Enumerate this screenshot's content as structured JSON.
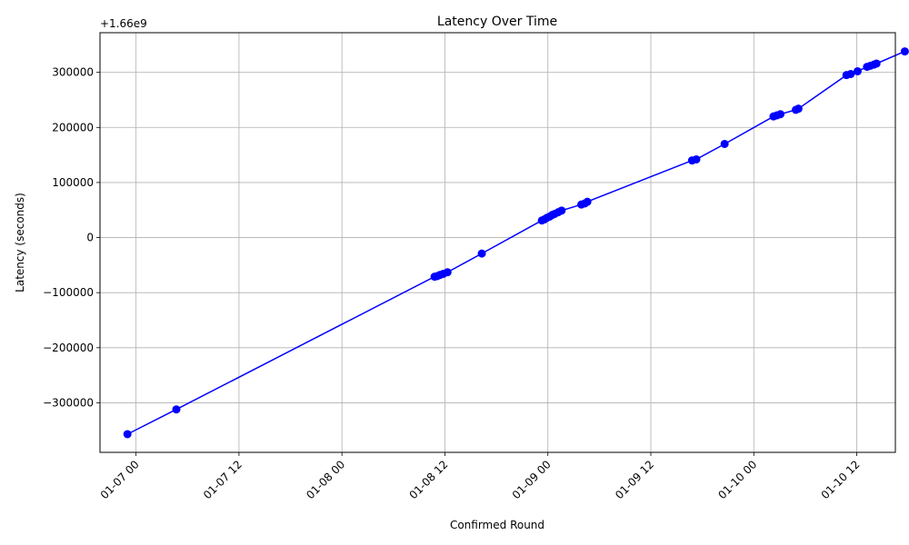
{
  "chart_data": {
    "type": "line",
    "title": "Latency Over Time",
    "xlabel": "Confirmed Round",
    "ylabel": "Latency (seconds)",
    "y_offset_text": "+1.66e9",
    "grid": true,
    "color": "#0000ff",
    "marker": "circle",
    "x_unit": "hours since 01-07 00:00",
    "xlim": [
      -4.2,
      88.5
    ],
    "ylim": [
      -390000,
      372000
    ],
    "x_ticks": [
      0,
      12,
      24,
      36,
      48,
      60,
      72,
      84
    ],
    "x_tick_labels": [
      "01-07 00",
      "01-07 12",
      "01-08 00",
      "01-08 12",
      "01-09 00",
      "01-09 12",
      "01-10 00",
      "01-10 12"
    ],
    "y_ticks": [
      -300000,
      -200000,
      -100000,
      0,
      100000,
      200000,
      300000
    ],
    "y_tick_labels": [
      "−300000",
      "−200000",
      "−100000",
      "0",
      "100000",
      "200000",
      "300000"
    ],
    "series": [
      {
        "name": "Latency",
        "x": [
          -1.0,
          4.7,
          34.8,
          35.1,
          35.4,
          35.8,
          36.3,
          40.3,
          47.3,
          47.6,
          47.9,
          48.2,
          48.5,
          48.8,
          49.2,
          49.6,
          51.9,
          52.3,
          52.6,
          64.8,
          65.3,
          68.6,
          74.3,
          74.7,
          75.1,
          76.9,
          77.2,
          82.8,
          83.3,
          84.1,
          85.2,
          85.6,
          86.0,
          86.3,
          89.6
        ],
        "y": [
          -357000,
          -312000,
          -71000,
          -70000,
          -68000,
          -66000,
          -63000,
          -29000,
          31000,
          33000,
          36000,
          38000,
          41000,
          43000,
          46000,
          49000,
          60000,
          62000,
          65000,
          140000,
          142000,
          170000,
          220000,
          222000,
          224000,
          232000,
          234000,
          295000,
          297000,
          302000,
          310000,
          312000,
          314000,
          316000,
          338000
        ]
      }
    ]
  }
}
